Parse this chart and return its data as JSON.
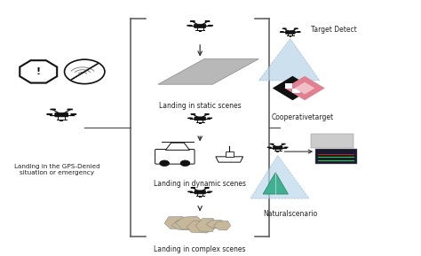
{
  "background_color": "#ffffff",
  "fig_width": 4.74,
  "fig_height": 2.89,
  "dpi": 100,
  "left_label": "Landing in the GPS-Denied\nsituation or emergency",
  "row1_label": "Landing in static scenes",
  "row2_label": "Landing in dynamic scenes",
  "row3_label": "Landing in complex scenes",
  "right_top_label": "Target Detect",
  "right_mid_label": "Cooperativetarget",
  "right_bot_label": "Naturalscenario",
  "arrow_color": "#333333",
  "line_color": "#555555",
  "text_color": "#222222",
  "drone_color": "#111111"
}
